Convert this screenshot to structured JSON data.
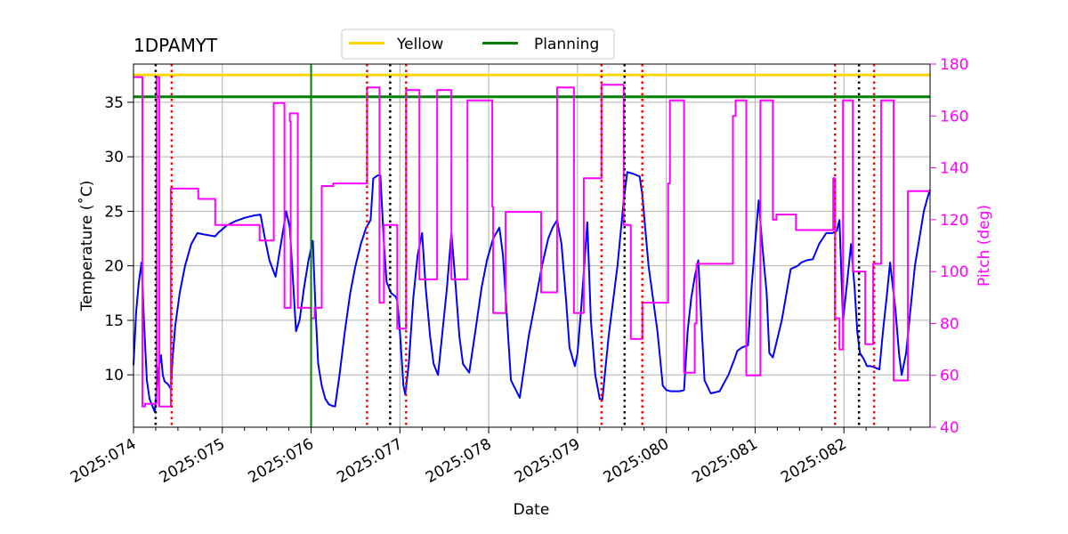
{
  "chart_data": {
    "type": "line",
    "title": "1DPAMYT",
    "xlabel": "Date",
    "ylabel_left": "Temperature ($^\\circ$C)",
    "ylabel_left_display": "Temperature (˚C)",
    "ylabel_right": "Pitch (deg)",
    "xlim": [
      74.0,
      82.97
    ],
    "ylim_left": [
      5.2,
      38.5
    ],
    "ylim_right": [
      40,
      180
    ],
    "x_ticks": [
      74,
      75,
      76,
      77,
      78,
      79,
      80,
      81,
      82
    ],
    "x_tick_labels": [
      "2025:074",
      "2025:075",
      "2025:076",
      "2025:077",
      "2025:078",
      "2025:079",
      "2025:080",
      "2025:081",
      "2025:082"
    ],
    "y_left_ticks": [
      10,
      15,
      20,
      25,
      30,
      35
    ],
    "y_left_tick_labels": [
      "10",
      "15",
      "20",
      "25",
      "30",
      "35"
    ],
    "y_right_ticks": [
      40,
      60,
      80,
      100,
      120,
      140,
      160,
      180
    ],
    "y_right_tick_labels": [
      "40",
      "60",
      "80",
      "100",
      "120",
      "140",
      "160",
      "180"
    ],
    "grid": true,
    "legend": {
      "placement": "top-center",
      "entries": [
        {
          "label": "Yellow",
          "color": "#ffd700"
        },
        {
          "label": "Planning",
          "color": "#008000"
        }
      ]
    },
    "horizontal_lines": [
      {
        "name": "Yellow",
        "y": 37.5,
        "color": "#ffd700"
      },
      {
        "name": "Planning",
        "y": 35.5,
        "color": "#008000"
      }
    ],
    "vertical_lines": {
      "green_solid": [
        76.0
      ],
      "black_dotted": [
        74.25,
        76.89,
        79.53,
        82.17
      ],
      "red_dotted": [
        74.43,
        76.63,
        77.07,
        79.27,
        79.73,
        81.9,
        82.34
      ]
    },
    "colors": {
      "temperature": "#0000ff",
      "pitch": "#ff00ff",
      "black_dotted": "#000000",
      "red_dotted": "#ff0000",
      "green_solid": "#008000"
    },
    "series": [
      {
        "name": "Temperature",
        "axis": "left",
        "color": "#0000ff",
        "x": [
          74.0,
          74.03,
          74.06,
          74.09,
          74.12,
          74.15,
          74.18,
          74.21,
          74.24,
          74.26,
          74.28,
          74.31,
          74.33,
          74.35,
          74.38,
          74.4,
          74.42,
          74.44,
          74.47,
          74.52,
          74.58,
          74.65,
          74.72,
          74.78,
          74.85,
          74.92,
          74.95,
          75.05,
          75.15,
          75.25,
          75.35,
          75.43,
          75.48,
          75.53,
          75.6,
          75.63,
          75.68,
          75.72,
          75.76,
          75.79,
          75.83,
          75.87,
          75.92,
          75.97,
          76.02,
          76.05,
          76.08,
          76.12,
          76.16,
          76.2,
          76.24,
          76.27,
          76.32,
          76.38,
          76.44,
          76.5,
          76.56,
          76.62,
          76.67,
          76.7,
          76.75,
          76.78,
          76.82,
          76.85,
          76.9,
          76.95,
          76.97,
          77.0,
          77.04,
          77.06,
          77.1,
          77.15,
          77.2,
          77.25,
          77.29,
          77.34,
          77.38,
          77.43,
          77.53,
          77.58,
          77.62,
          77.67,
          77.71,
          77.78,
          77.85,
          77.92,
          77.98,
          78.05,
          78.12,
          78.16,
          78.25,
          78.35,
          78.45,
          78.52,
          78.6,
          78.67,
          78.72,
          78.77,
          78.82,
          78.87,
          78.91,
          78.97,
          79.0,
          79.04,
          79.08,
          79.11,
          79.15,
          79.2,
          79.25,
          79.28,
          79.35,
          79.45,
          79.52,
          79.56,
          79.6,
          79.64,
          79.67,
          79.7,
          79.73,
          79.8,
          79.9,
          79.96,
          80.0,
          80.05,
          80.1,
          80.15,
          80.2,
          80.24,
          80.28,
          80.32,
          80.36,
          80.4,
          80.43,
          80.5,
          80.6,
          80.7,
          80.77,
          80.8,
          80.85,
          80.88,
          80.92,
          80.96,
          81.0,
          81.04,
          81.08,
          81.13,
          81.16,
          81.2,
          81.3,
          81.4,
          81.48,
          81.52,
          81.58,
          81.65,
          81.72,
          81.8,
          81.87,
          81.92,
          81.95,
          81.99,
          82.03,
          82.08,
          82.12,
          82.15,
          82.18,
          82.22,
          82.26,
          82.3,
          82.34,
          82.4,
          82.44,
          82.48,
          82.52,
          82.58,
          82.62,
          82.65,
          82.7,
          82.75,
          82.8,
          82.85,
          82.9,
          82.94,
          82.97
        ],
        "y": [
          10.9,
          15.8,
          18.5,
          20.3,
          14.5,
          9.5,
          7.8,
          7.2,
          6.6,
          8.5,
          10.5,
          11.8,
          10.0,
          9.4,
          9.2,
          9.0,
          8.7,
          11.5,
          14.5,
          17.5,
          20.0,
          22.0,
          23.0,
          22.9,
          22.8,
          22.7,
          23.0,
          23.7,
          24.1,
          24.4,
          24.6,
          24.7,
          22.5,
          20.5,
          19.0,
          20.5,
          23.0,
          25.0,
          23.5,
          19.5,
          14.0,
          15.0,
          18.0,
          20.5,
          22.3,
          16.0,
          11.0,
          9.0,
          7.8,
          7.3,
          7.15,
          7.1,
          10.0,
          14.0,
          17.5,
          20.0,
          22.0,
          23.5,
          24.2,
          28.0,
          28.3,
          28.3,
          22.0,
          18.5,
          17.5,
          17.2,
          16.8,
          14.0,
          9.0,
          8.2,
          11.0,
          17.0,
          21.0,
          23.0,
          18.0,
          13.5,
          11.0,
          10.0,
          18.0,
          23.0,
          19.0,
          13.5,
          11.0,
          10.2,
          14.0,
          18.0,
          20.5,
          22.5,
          23.5,
          21.0,
          9.5,
          7.9,
          13.5,
          16.5,
          20.0,
          22.5,
          23.5,
          24.2,
          22.0,
          17.0,
          12.5,
          10.8,
          12.0,
          16.0,
          20.5,
          24.0,
          15.0,
          10.0,
          7.8,
          7.7,
          13.5,
          20.0,
          26.0,
          28.6,
          28.5,
          28.4,
          28.3,
          28.2,
          26.5,
          20.0,
          14.0,
          9.0,
          8.6,
          8.5,
          8.5,
          8.5,
          8.6,
          14.0,
          17.0,
          19.0,
          20.5,
          14.0,
          9.5,
          8.3,
          8.5,
          10.0,
          11.5,
          12.2,
          12.5,
          12.6,
          12.7,
          18.0,
          22.0,
          26.0,
          22.0,
          17.5,
          12.0,
          11.6,
          15.0,
          19.7,
          20.0,
          20.3,
          20.5,
          20.6,
          22.0,
          23.0,
          23.0,
          23.2,
          24.2,
          15.0,
          18.0,
          22.0,
          18.0,
          14.0,
          12.0,
          11.5,
          10.8,
          10.8,
          10.7,
          10.5,
          14.0,
          17.0,
          20.3,
          16.0,
          12.0,
          10.0,
          12.0,
          16.0,
          20.0,
          22.5,
          25.0,
          26.2,
          27.0
        ]
      },
      {
        "name": "Pitch",
        "axis": "right",
        "color": "#ff00ff",
        "x": [
          74.0,
          74.1,
          74.1,
          74.13,
          74.13,
          74.26,
          74.26,
          74.29,
          74.29,
          74.42,
          74.42,
          74.73,
          74.73,
          74.92,
          74.92,
          75.42,
          75.42,
          75.58,
          75.58,
          75.7,
          75.7,
          75.77,
          75.77,
          75.76,
          75.76,
          75.85,
          75.85,
          76.0,
          76.0,
          76.04,
          76.04,
          76.12,
          76.12,
          76.25,
          76.25,
          76.63,
          76.63,
          76.77,
          76.77,
          76.82,
          76.82,
          76.97,
          76.97,
          77.07,
          77.07,
          77.22,
          77.22,
          77.42,
          77.42,
          77.58,
          77.58,
          77.76,
          77.76,
          78.04,
          78.04,
          78.05,
          78.05,
          78.19,
          78.19,
          78.59,
          78.59,
          78.77,
          78.77,
          78.96,
          78.96,
          79.07,
          79.07,
          79.12,
          79.12,
          79.27,
          79.27,
          79.52,
          79.52,
          79.6,
          79.6,
          79.73,
          79.73,
          80.02,
          80.02,
          80.04,
          80.04,
          80.2,
          80.2,
          80.32,
          80.32,
          80.34,
          80.34,
          80.75,
          80.75,
          80.78,
          80.78,
          80.9,
          80.9,
          81.06,
          81.06,
          81.2,
          81.2,
          81.24,
          81.24,
          81.46,
          81.46,
          81.75,
          81.75,
          81.88,
          81.88,
          81.9,
          81.9,
          81.95,
          81.95,
          81.99,
          81.99,
          82.1,
          82.1,
          82.24,
          82.24,
          82.33,
          82.33,
          82.42,
          82.42,
          82.56,
          82.56,
          82.72,
          82.72,
          82.97
        ],
        "y": [
          175,
          175,
          48,
          48,
          49,
          49,
          175,
          175,
          48,
          48,
          132,
          132,
          128,
          128,
          118,
          118,
          112,
          112,
          165,
          165,
          86,
          86,
          158,
          158,
          161,
          161,
          86,
          86,
          82,
          82,
          86,
          86,
          133,
          133,
          134,
          134,
          171,
          171,
          88,
          88,
          118,
          118,
          78,
          78,
          170,
          170,
          97,
          97,
          170,
          170,
          97,
          97,
          166,
          166,
          125,
          125,
          84,
          84,
          123,
          123,
          92,
          92,
          171,
          171,
          84,
          84,
          136,
          136,
          136,
          136,
          172,
          172,
          118,
          118,
          74,
          74,
          88,
          88,
          134,
          134,
          166,
          166,
          61,
          61,
          80,
          80,
          103,
          103,
          160,
          160,
          166,
          166,
          60,
          60,
          166,
          166,
          120,
          120,
          122,
          122,
          116,
          116,
          116,
          116,
          136,
          136,
          82,
          82,
          70,
          70,
          166,
          166,
          100,
          100,
          72,
          72,
          103,
          103,
          166,
          166,
          58,
          58,
          131,
          131
        ]
      }
    ]
  }
}
